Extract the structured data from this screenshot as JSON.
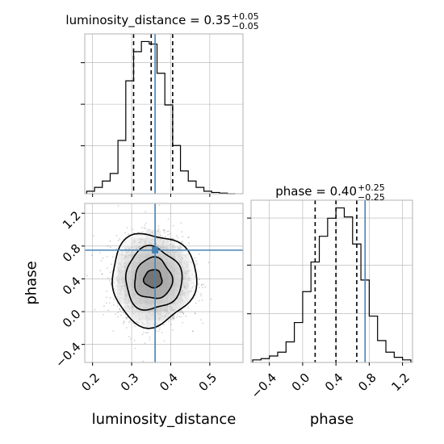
{
  "chart_data": [
    {
      "type": "histogram",
      "panel": "1d-luminosity_distance",
      "title_param": "luminosity_distance",
      "title_value": "0.35",
      "title_plus": "+0.05",
      "title_minus": "−0.05",
      "xlim": [
        0.18,
        0.585
      ],
      "grid": true,
      "bin_edges": [
        0.185,
        0.205,
        0.225,
        0.245,
        0.265,
        0.285,
        0.305,
        0.325,
        0.345,
        0.365,
        0.385,
        0.405,
        0.425,
        0.445,
        0.465,
        0.485,
        0.505,
        0.525,
        0.545,
        0.565
      ],
      "counts": [
        2,
        5,
        10,
        16,
        42,
        89,
        112,
        120,
        118,
        95,
        70,
        38,
        18,
        10,
        5,
        2,
        1,
        0.5,
        0
      ],
      "quantiles": [
        0.305,
        0.35,
        0.405
      ],
      "truth": 0.36,
      "colors": {
        "line": "#000000",
        "truth": "#4682b4",
        "grid": "#b0b0b0"
      }
    },
    {
      "type": "histogram",
      "panel": "1d-phase",
      "title_param": "phase",
      "title_value": "0.40",
      "title_plus": "+0.25",
      "title_minus": "−0.25",
      "xlim": [
        -0.62,
        1.32
      ],
      "xticks": [
        -0.4,
        0.0,
        0.4,
        0.8,
        1.2
      ],
      "xtick_labels": [
        "−0.4",
        "0.0",
        "0.4",
        "0.8",
        "1.2"
      ],
      "xlabel": "phase",
      "grid": true,
      "bin_edges": [
        -0.6,
        -0.5,
        -0.4,
        -0.3,
        -0.2,
        -0.1,
        0.0,
        0.1,
        0.2,
        0.3,
        0.4,
        0.5,
        0.6,
        0.7,
        0.8,
        0.9,
        1.0,
        1.1,
        1.2,
        1.3
      ],
      "counts": [
        2,
        3,
        5,
        8,
        16,
        31,
        55,
        78,
        98,
        112,
        120,
        113,
        92,
        64,
        36,
        17,
        8,
        4,
        2
      ],
      "quantiles": [
        0.15,
        0.4,
        0.65
      ],
      "truth": 0.75,
      "colors": {
        "line": "#000000",
        "truth": "#4682b4",
        "grid": "#b0b0b0"
      }
    },
    {
      "type": "scatter",
      "panel": "2d-luminosity_distance-vs-phase",
      "xlim": [
        0.18,
        0.585
      ],
      "ylim": [
        -0.62,
        1.32
      ],
      "xticks": [
        0.2,
        0.3,
        0.4,
        0.5
      ],
      "xtick_labels": [
        "0.2",
        "0.3",
        "0.4",
        "0.5"
      ],
      "yticks": [
        -0.4,
        0.0,
        0.4,
        0.8,
        1.2
      ],
      "ytick_labels": [
        "−0.4",
        "0.0",
        "0.4",
        "0.8",
        "1.2"
      ],
      "xlabel": "luminosity_distance",
      "ylabel": "phase",
      "grid": true,
      "center": {
        "x": 0.355,
        "y": 0.4
      },
      "spread": {
        "x": 0.045,
        "y": 0.25
      },
      "contours": [
        {
          "rx": 0.023,
          "ry": 0.11
        },
        {
          "rx": 0.048,
          "ry": 0.25
        },
        {
          "rx": 0.072,
          "ry": 0.38
        },
        {
          "rx": 0.108,
          "ry": 0.56
        }
      ],
      "truth": {
        "x": 0.36,
        "y": 0.75
      },
      "colors": {
        "points": "#7f7f7f",
        "density": "#000000",
        "truth": "#4682b4",
        "grid": "#b0b0b0"
      }
    }
  ]
}
